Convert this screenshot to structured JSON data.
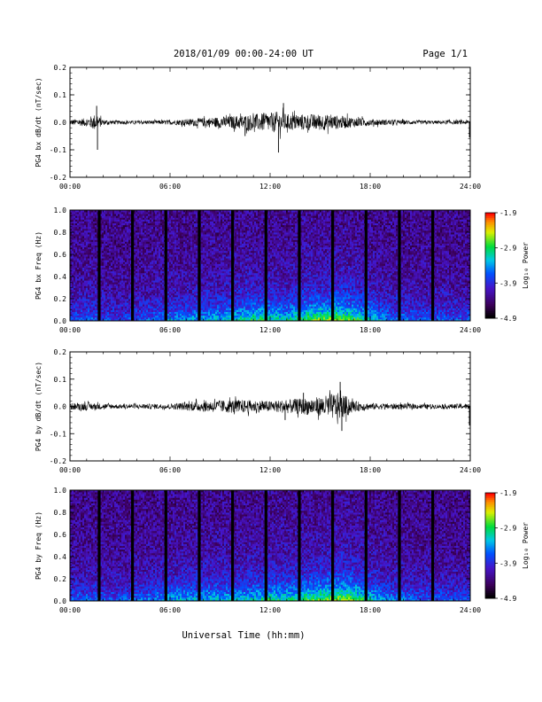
{
  "header": {
    "title": "2018/01/09  00:00-24:00 UT",
    "page": "Page 1/1"
  },
  "xaxis": {
    "label": "Universal Time (hh:mm)",
    "ticks": [
      "00:00",
      "06:00",
      "12:00",
      "18:00",
      "24:00"
    ]
  },
  "chart_data": [
    {
      "type": "line",
      "ylabel": "PG4 bx dB/dt (nT/sec)",
      "xlim": [
        0,
        24
      ],
      "ylim": [
        -0.2,
        0.2
      ],
      "yticks": [
        "0.2",
        "0.1",
        "0.0",
        "-0.1",
        "-0.2"
      ],
      "xticks": [
        "00:00",
        "06:00",
        "12:00",
        "18:00",
        "24:00"
      ],
      "envelope": {
        "x": [
          0,
          1,
          1.5,
          2,
          3,
          6,
          9,
          10,
          11,
          12,
          12.5,
          13,
          15,
          16,
          18,
          20,
          22,
          23.9,
          24
        ],
        "amp": [
          0.01,
          0.015,
          0.03,
          0.01,
          0.006,
          0.008,
          0.02,
          0.025,
          0.03,
          0.035,
          0.04,
          0.03,
          0.03,
          0.025,
          0.012,
          0.008,
          0.006,
          0.008,
          0.012
        ]
      },
      "spikes": [
        {
          "x": 1.6,
          "y": 0.06
        },
        {
          "x": 1.65,
          "y": -0.1
        },
        {
          "x": 12.5,
          "y": -0.11
        },
        {
          "x": 12.8,
          "y": 0.07
        },
        {
          "x": 10.5,
          "y": -0.05
        },
        {
          "x": 23.95,
          "y": -0.055
        }
      ]
    },
    {
      "type": "heatmap",
      "ylabel": "PG4 bx Freq (Hz)",
      "xlim": [
        0,
        24
      ],
      "ylim": [
        0,
        1.0
      ],
      "yticks": [
        "1.0",
        "0.8",
        "0.6",
        "0.4",
        "0.2",
        "0.0"
      ],
      "xticks": [
        "00:00",
        "06:00",
        "12:00",
        "18:00",
        "24:00"
      ],
      "colorbar": {
        "label": "Log₁₀ Power",
        "ticks": [
          "-1.9",
          "-2.9",
          "-3.9",
          "-4.9"
        ],
        "range": [
          -4.9,
          -1.9
        ]
      },
      "gap_hours": [
        1.75,
        3.75,
        5.75,
        7.75,
        9.75,
        11.75,
        13.75,
        15.75,
        17.75,
        19.75,
        21.75
      ],
      "activity": {
        "x": [
          0,
          1,
          2,
          3,
          6,
          8,
          10,
          11,
          12,
          13,
          14,
          15,
          16,
          17,
          18,
          19,
          20,
          22,
          24
        ],
        "level": [
          0.3,
          0.35,
          0.3,
          0.25,
          0.4,
          0.45,
          0.55,
          0.65,
          0.6,
          0.55,
          0.7,
          0.75,
          0.8,
          0.7,
          0.55,
          0.4,
          0.35,
          0.3,
          0.3
        ]
      }
    },
    {
      "type": "line",
      "ylabel": "PG4 by dB/dt (nT/sec)",
      "xlim": [
        0,
        24
      ],
      "ylim": [
        -0.2,
        0.2
      ],
      "yticks": [
        "0.2",
        "0.1",
        "0.0",
        "-0.1",
        "-0.2"
      ],
      "xticks": [
        "00:00",
        "06:00",
        "12:00",
        "18:00",
        "24:00"
      ],
      "envelope": {
        "x": [
          0,
          1,
          2,
          3,
          6,
          8,
          10,
          12,
          13,
          14,
          15,
          16,
          16.5,
          17,
          18,
          20,
          22,
          23.9,
          24
        ],
        "amp": [
          0.012,
          0.015,
          0.01,
          0.008,
          0.01,
          0.02,
          0.025,
          0.02,
          0.025,
          0.03,
          0.035,
          0.05,
          0.04,
          0.02,
          0.012,
          0.01,
          0.008,
          0.01,
          0.02
        ]
      },
      "spikes": [
        {
          "x": 16.2,
          "y": 0.09
        },
        {
          "x": 16.3,
          "y": -0.09
        },
        {
          "x": 12.9,
          "y": -0.05
        },
        {
          "x": 14.0,
          "y": 0.05
        },
        {
          "x": 23.95,
          "y": -0.07
        }
      ]
    },
    {
      "type": "heatmap",
      "ylabel": "PG4 by Freq (Hz)",
      "xlim": [
        0,
        24
      ],
      "ylim": [
        0,
        1.0
      ],
      "yticks": [
        "1.0",
        "0.8",
        "0.6",
        "0.4",
        "0.2",
        "0.0"
      ],
      "xticks": [
        "00:00",
        "06:00",
        "12:00",
        "18:00",
        "24:00"
      ],
      "colorbar": {
        "label": "Log₁₀ Power",
        "ticks": [
          "-1.9",
          "-2.9",
          "-3.9",
          "-4.9"
        ],
        "range": [
          -4.9,
          -1.9
        ]
      },
      "gap_hours": [
        1.75,
        3.75,
        5.75,
        7.75,
        9.75,
        11.75,
        13.75,
        15.75,
        17.75,
        19.75,
        21.75
      ],
      "activity": {
        "x": [
          0,
          1,
          2,
          3,
          6,
          8,
          10,
          11,
          12,
          13,
          14,
          15,
          16,
          17,
          18,
          19,
          20,
          22,
          24
        ],
        "level": [
          0.3,
          0.35,
          0.3,
          0.3,
          0.45,
          0.5,
          0.5,
          0.55,
          0.6,
          0.6,
          0.65,
          0.75,
          0.8,
          0.75,
          0.55,
          0.4,
          0.35,
          0.3,
          0.3
        ]
      }
    }
  ]
}
